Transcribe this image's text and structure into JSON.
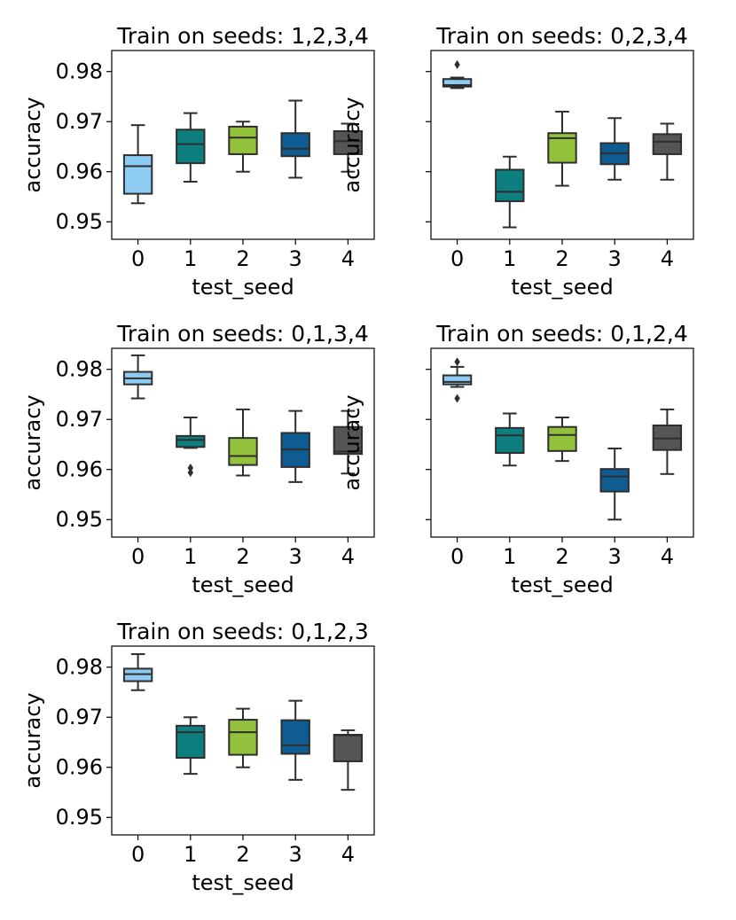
{
  "colors": {
    "palette": [
      "#8ecbf2",
      "#0e7f7f",
      "#93c13c",
      "#0f5c93",
      "#555555"
    ],
    "stroke": "#2e2e2e"
  },
  "chart_data": [
    {
      "type": "box",
      "title": "Train on seeds: 1,2,3,4",
      "xlabel": "test_seed",
      "ylabel": "accuracy",
      "categories": [
        "0",
        "1",
        "2",
        "3",
        "4"
      ],
      "ylim": [
        0.9465,
        0.9842
      ],
      "yticks": [
        0.95,
        0.96,
        0.97,
        0.98
      ],
      "ytick_labels": [
        "0.95",
        "0.96",
        "0.97",
        "0.98"
      ],
      "boxes": [
        {
          "whislo": 0.9537,
          "q1": 0.9556,
          "med": 0.9611,
          "q3": 0.9633,
          "whishi": 0.9693,
          "fliers": []
        },
        {
          "whislo": 0.958,
          "q1": 0.9617,
          "med": 0.9655,
          "q3": 0.9684,
          "whishi": 0.9717,
          "fliers": []
        },
        {
          "whislo": 0.96,
          "q1": 0.9635,
          "med": 0.9668,
          "q3": 0.969,
          "whishi": 0.97,
          "fliers": []
        },
        {
          "whislo": 0.9588,
          "q1": 0.9631,
          "med": 0.9646,
          "q3": 0.9677,
          "whishi": 0.9742,
          "fliers": []
        },
        {
          "whislo": 0.96,
          "q1": 0.9635,
          "med": 0.9661,
          "q3": 0.9681,
          "whishi": 0.9696,
          "fliers": []
        }
      ]
    },
    {
      "type": "box",
      "title": "Train on seeds: 0,2,3,4",
      "xlabel": "test_seed",
      "ylabel": "accuracy",
      "categories": [
        "0",
        "1",
        "2",
        "3",
        "4"
      ],
      "ylim": [
        0.9465,
        0.9842
      ],
      "yticks": [
        0.95,
        0.96,
        0.97,
        0.98
      ],
      "ytick_labels": [
        "",
        "",
        "",
        ""
      ],
      "boxes": [
        {
          "whislo": 0.9767,
          "q1": 0.977,
          "med": 0.9773,
          "q3": 0.9785,
          "whishi": 0.9788,
          "fliers": [
            0.9814
          ]
        },
        {
          "whislo": 0.9489,
          "q1": 0.9541,
          "med": 0.956,
          "q3": 0.9604,
          "whishi": 0.963,
          "fliers": []
        },
        {
          "whislo": 0.9572,
          "q1": 0.9618,
          "med": 0.9667,
          "q3": 0.9677,
          "whishi": 0.972,
          "fliers": []
        },
        {
          "whislo": 0.9584,
          "q1": 0.9615,
          "med": 0.9637,
          "q3": 0.9657,
          "whishi": 0.9707,
          "fliers": []
        },
        {
          "whislo": 0.9584,
          "q1": 0.9635,
          "med": 0.966,
          "q3": 0.9675,
          "whishi": 0.9696,
          "fliers": []
        }
      ]
    },
    {
      "type": "box",
      "title": "Train on seeds: 0,1,3,4",
      "xlabel": "test_seed",
      "ylabel": "accuracy",
      "categories": [
        "0",
        "1",
        "2",
        "3",
        "4"
      ],
      "ylim": [
        0.9465,
        0.9842
      ],
      "yticks": [
        0.95,
        0.96,
        0.97,
        0.98
      ],
      "ytick_labels": [
        "0.95",
        "0.96",
        "0.97",
        "0.98"
      ],
      "boxes": [
        {
          "whislo": 0.9742,
          "q1": 0.977,
          "med": 0.9782,
          "q3": 0.9795,
          "whishi": 0.9828,
          "fliers": []
        },
        {
          "whislo": 0.9643,
          "q1": 0.9645,
          "med": 0.9659,
          "q3": 0.9667,
          "whishi": 0.9704,
          "fliers": [
            0.9603,
            0.9594
          ]
        },
        {
          "whislo": 0.9588,
          "q1": 0.9609,
          "med": 0.9627,
          "q3": 0.9663,
          "whishi": 0.972,
          "fliers": []
        },
        {
          "whislo": 0.9575,
          "q1": 0.9605,
          "med": 0.964,
          "q3": 0.9673,
          "whishi": 0.9717,
          "fliers": []
        },
        {
          "whislo": 0.9592,
          "q1": 0.9631,
          "med": 0.9636,
          "q3": 0.9685,
          "whishi": 0.9717,
          "fliers": []
        }
      ]
    },
    {
      "type": "box",
      "title": "Train on seeds: 0,1,2,4",
      "xlabel": "test_seed",
      "ylabel": "accuracy",
      "categories": [
        "0",
        "1",
        "2",
        "3",
        "4"
      ],
      "ylim": [
        0.9465,
        0.9842
      ],
      "yticks": [
        0.95,
        0.96,
        0.97,
        0.98
      ],
      "ytick_labels": [
        "",
        "",
        "",
        ""
      ],
      "boxes": [
        {
          "whislo": 0.9765,
          "q1": 0.977,
          "med": 0.9775,
          "q3": 0.9788,
          "whishi": 0.9805,
          "fliers": [
            0.9815,
            0.9742
          ]
        },
        {
          "whislo": 0.9608,
          "q1": 0.9633,
          "med": 0.9668,
          "q3": 0.9683,
          "whishi": 0.9712,
          "fliers": []
        },
        {
          "whislo": 0.9617,
          "q1": 0.9637,
          "med": 0.9669,
          "q3": 0.9685,
          "whishi": 0.9704,
          "fliers": []
        },
        {
          "whislo": 0.95,
          "q1": 0.9556,
          "med": 0.9586,
          "q3": 0.9601,
          "whishi": 0.9642,
          "fliers": []
        },
        {
          "whislo": 0.9591,
          "q1": 0.9639,
          "med": 0.9662,
          "q3": 0.9688,
          "whishi": 0.972,
          "fliers": []
        }
      ]
    },
    {
      "type": "box",
      "title": "Train on seeds: 0,1,2,3",
      "xlabel": "test_seed",
      "ylabel": "accuracy",
      "categories": [
        "0",
        "1",
        "2",
        "3",
        "4"
      ],
      "ylim": [
        0.9465,
        0.9842
      ],
      "yticks": [
        0.95,
        0.96,
        0.97,
        0.98
      ],
      "ytick_labels": [
        "0.95",
        "0.96",
        "0.97",
        "0.98"
      ],
      "boxes": [
        {
          "whislo": 0.9754,
          "q1": 0.9772,
          "med": 0.9786,
          "q3": 0.9797,
          "whishi": 0.9826,
          "fliers": []
        },
        {
          "whislo": 0.9587,
          "q1": 0.9619,
          "med": 0.967,
          "q3": 0.9683,
          "whishi": 0.97,
          "fliers": []
        },
        {
          "whislo": 0.96,
          "q1": 0.9625,
          "med": 0.967,
          "q3": 0.9695,
          "whishi": 0.9717,
          "fliers": []
        },
        {
          "whislo": 0.9575,
          "q1": 0.9627,
          "med": 0.9644,
          "q3": 0.9694,
          "whishi": 0.9733,
          "fliers": []
        },
        {
          "whislo": 0.9555,
          "q1": 0.9612,
          "med": 0.9664,
          "q3": 0.9665,
          "whishi": 0.9674,
          "fliers": []
        }
      ]
    }
  ]
}
